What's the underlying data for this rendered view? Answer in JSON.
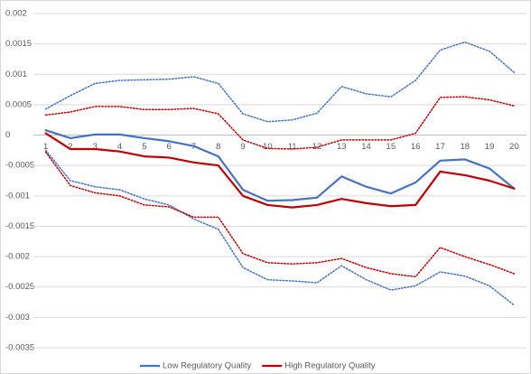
{
  "chart_data": {
    "type": "line",
    "categories": [
      "1",
      "2",
      "3",
      "4",
      "5",
      "6",
      "7",
      "8",
      "9",
      "10",
      "11",
      "12",
      "13",
      "14",
      "15",
      "16",
      "17",
      "18",
      "19",
      "20"
    ],
    "series": [
      {
        "name": "Low Regulatory Quality",
        "color": "#4472c4",
        "values": [
          8e-05,
          -5e-05,
          1e-05,
          1e-05,
          -5e-05,
          -0.0001,
          -0.00018,
          -0.00035,
          -0.0009,
          -0.00108,
          -0.00107,
          -0.00103,
          -0.00068,
          -0.00085,
          -0.00096,
          -0.00078,
          -0.00042,
          -0.0004,
          -0.00055,
          -0.00088
        ],
        "upper": [
          0.00043,
          0.00065,
          0.00085,
          0.0009,
          0.00091,
          0.00092,
          0.00096,
          0.00085,
          0.00035,
          0.00022,
          0.00025,
          0.00036,
          0.0008,
          0.00068,
          0.00063,
          0.0009,
          0.0014,
          0.00153,
          0.00138,
          0.00103
        ],
        "lower": [
          -0.00025,
          -0.00075,
          -0.00085,
          -0.0009,
          -0.00105,
          -0.00115,
          -0.00138,
          -0.00155,
          -0.00218,
          -0.00238,
          -0.0024,
          -0.00243,
          -0.00215,
          -0.00238,
          -0.00255,
          -0.00248,
          -0.00225,
          -0.00232,
          -0.00248,
          -0.0028
        ]
      },
      {
        "name": "High Regulatory Quality",
        "color": "#c00000",
        "values": [
          3e-05,
          -0.00023,
          -0.00023,
          -0.00027,
          -0.00035,
          -0.00037,
          -0.00045,
          -0.0005,
          -0.001,
          -0.00115,
          -0.00119,
          -0.00115,
          -0.00105,
          -0.00112,
          -0.00117,
          -0.00115,
          -0.0006,
          -0.00066,
          -0.00075,
          -0.00088
        ],
        "upper": [
          0.00033,
          0.00038,
          0.00047,
          0.00047,
          0.00042,
          0.00042,
          0.00044,
          0.00035,
          -8e-05,
          -0.00022,
          -0.00023,
          -0.0002,
          -8e-05,
          -8e-05,
          -8e-05,
          3e-05,
          0.00062,
          0.00063,
          0.00058,
          0.00048
        ],
        "lower": [
          -0.00028,
          -0.00083,
          -0.00095,
          -0.001,
          -0.00115,
          -0.00118,
          -0.00135,
          -0.00135,
          -0.00195,
          -0.0021,
          -0.00212,
          -0.0021,
          -0.00203,
          -0.00218,
          -0.00228,
          -0.00233,
          -0.00185,
          -0.002,
          -0.00213,
          -0.00228
        ]
      }
    ],
    "ylim": [
      -0.0035,
      0.002
    ],
    "yticks": [
      -0.0035,
      -0.003,
      -0.0025,
      -0.002,
      -0.0015,
      -0.001,
      -0.0005,
      0,
      0.0005,
      0.001,
      0.0015,
      0.002
    ],
    "grid": true,
    "legend": "bottom"
  }
}
